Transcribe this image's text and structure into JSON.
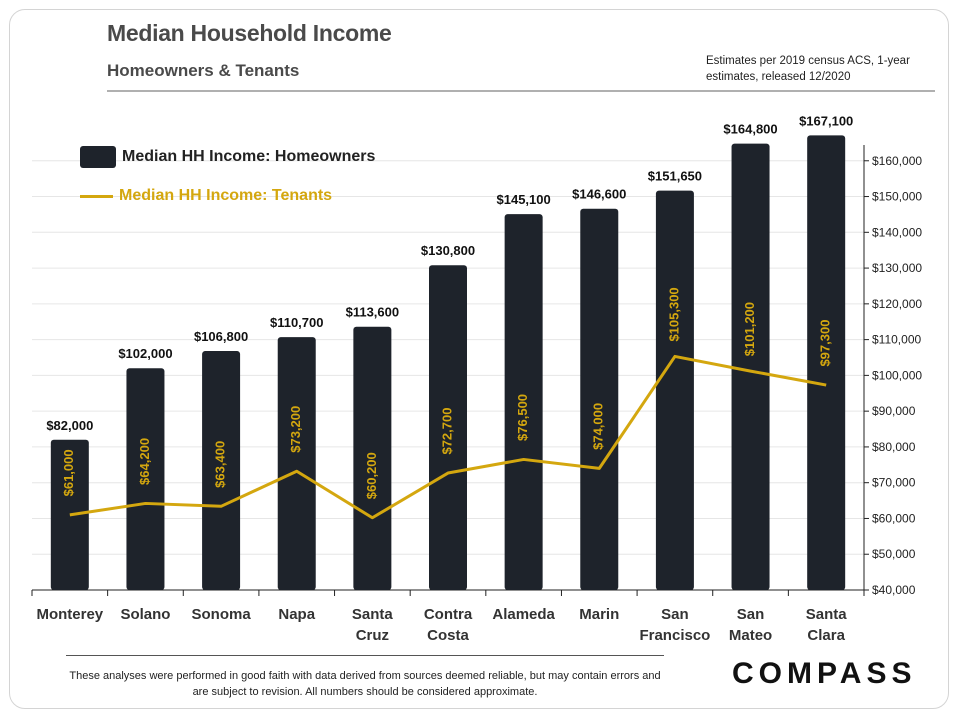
{
  "header": {
    "title": "Median Household Income",
    "subtitle": "Homeowners & Tenants",
    "note": "Estimates per 2019 census ACS, 1-year estimates, released 12/2020"
  },
  "footer": {
    "disclaimer": "These analyses  were performed in good faith with data derived from sources deemed reliable, but may contain errors and are subject to revision.  All numbers should be considered approximate.",
    "logo": "COMPASS"
  },
  "colors": {
    "bar": "#1e232b",
    "line": "#d4a70f",
    "grid": "#e6e6e6",
    "axis": "#222222"
  },
  "chart_data": {
    "type": "bar",
    "title": "Median Household Income",
    "subtitle": "Homeowners & Tenants",
    "categories": [
      [
        "Monterey"
      ],
      [
        "Solano"
      ],
      [
        "Sonoma"
      ],
      [
        "Napa"
      ],
      [
        "Santa",
        "Cruz"
      ],
      [
        "Contra",
        "Costa"
      ],
      [
        "Alameda"
      ],
      [
        "Marin"
      ],
      [
        "San",
        "Francisco"
      ],
      [
        "San",
        "Mateo"
      ],
      [
        "Santa",
        "Clara"
      ]
    ],
    "series": [
      {
        "name": "Median HH Income: Homeowners",
        "kind": "bar",
        "values": [
          82000,
          102000,
          106800,
          110700,
          113600,
          130800,
          145100,
          146600,
          151650,
          164800,
          167100
        ],
        "labels": [
          "$82,000",
          "$102,000",
          "$106,800",
          "$110,700",
          "$113,600",
          "$130,800",
          "$145,100",
          "$146,600",
          "$151,650",
          "$164,800",
          "$167,100"
        ]
      },
      {
        "name": "Median HH Income: Tenants",
        "kind": "line",
        "values": [
          61000,
          64200,
          63400,
          73200,
          60200,
          72700,
          76500,
          74000,
          105300,
          101200,
          97300
        ],
        "labels": [
          "$61,000",
          "$64,200",
          "$63,400",
          "$73,200",
          "$60,200",
          "$72,700",
          "$76,500",
          "$74,000",
          "$105,300",
          "$101,200",
          "$97,300"
        ]
      }
    ],
    "y_axis": {
      "side": "right",
      "min": 40000,
      "max": 170000,
      "ticks": [
        40000,
        50000,
        60000,
        70000,
        80000,
        90000,
        100000,
        110000,
        120000,
        130000,
        140000,
        150000,
        160000
      ],
      "tick_labels": [
        "$40,000",
        "$50,000",
        "$60,000",
        "$70,000",
        "$80,000",
        "$90,000",
        "$100,000",
        "$110,000",
        "$120,000",
        "$130,000",
        "$140,000",
        "$150,000",
        "$160,000"
      ]
    },
    "grid": true,
    "legend": "top-left"
  }
}
